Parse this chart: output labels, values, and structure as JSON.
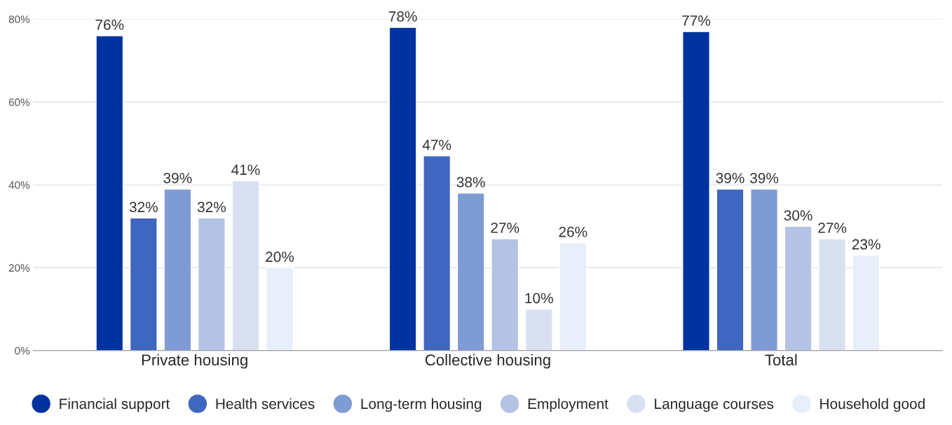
{
  "chart_data": {
    "type": "bar",
    "categories": [
      "Private housing",
      "Collective housing",
      "Total"
    ],
    "series": [
      {
        "name": "Financial support",
        "color": "#0033a0",
        "values": [
          76,
          78,
          77
        ],
        "value_labels": [
          "76%",
          "78%",
          "77%"
        ]
      },
      {
        "name": "Health services",
        "color": "#3f67bf",
        "values": [
          32,
          47,
          39
        ],
        "value_labels": [
          "32%",
          "47%",
          "39%"
        ]
      },
      {
        "name": "Long-term housing",
        "color": "#7f9bd3",
        "values": [
          39,
          38,
          39
        ],
        "value_labels": [
          "39%",
          "38%",
          "39%"
        ]
      },
      {
        "name": "Employment",
        "color": "#b3c2e5",
        "values": [
          32,
          27,
          30
        ],
        "value_labels": [
          "32%",
          "27%",
          "30%"
        ]
      },
      {
        "name": "Language courses",
        "color": "#d9e0f2",
        "values": [
          41,
          10,
          27
        ],
        "value_labels": [
          "41%",
          "10%",
          "27%"
        ]
      },
      {
        "name": "Household good",
        "color": "#e8eefa",
        "values": [
          20,
          26,
          23
        ],
        "value_labels": [
          "20%",
          "26%",
          "23%"
        ]
      }
    ],
    "ylim": [
      0,
      80
    ],
    "yticks": [
      {
        "value": 0,
        "label": "0%"
      },
      {
        "value": 20,
        "label": "20%"
      },
      {
        "value": 40,
        "label": "40%"
      },
      {
        "value": 60,
        "label": "60%"
      },
      {
        "value": 80,
        "label": "80%"
      }
    ],
    "grid": "y",
    "legend": "bottom",
    "marker": "circle"
  }
}
